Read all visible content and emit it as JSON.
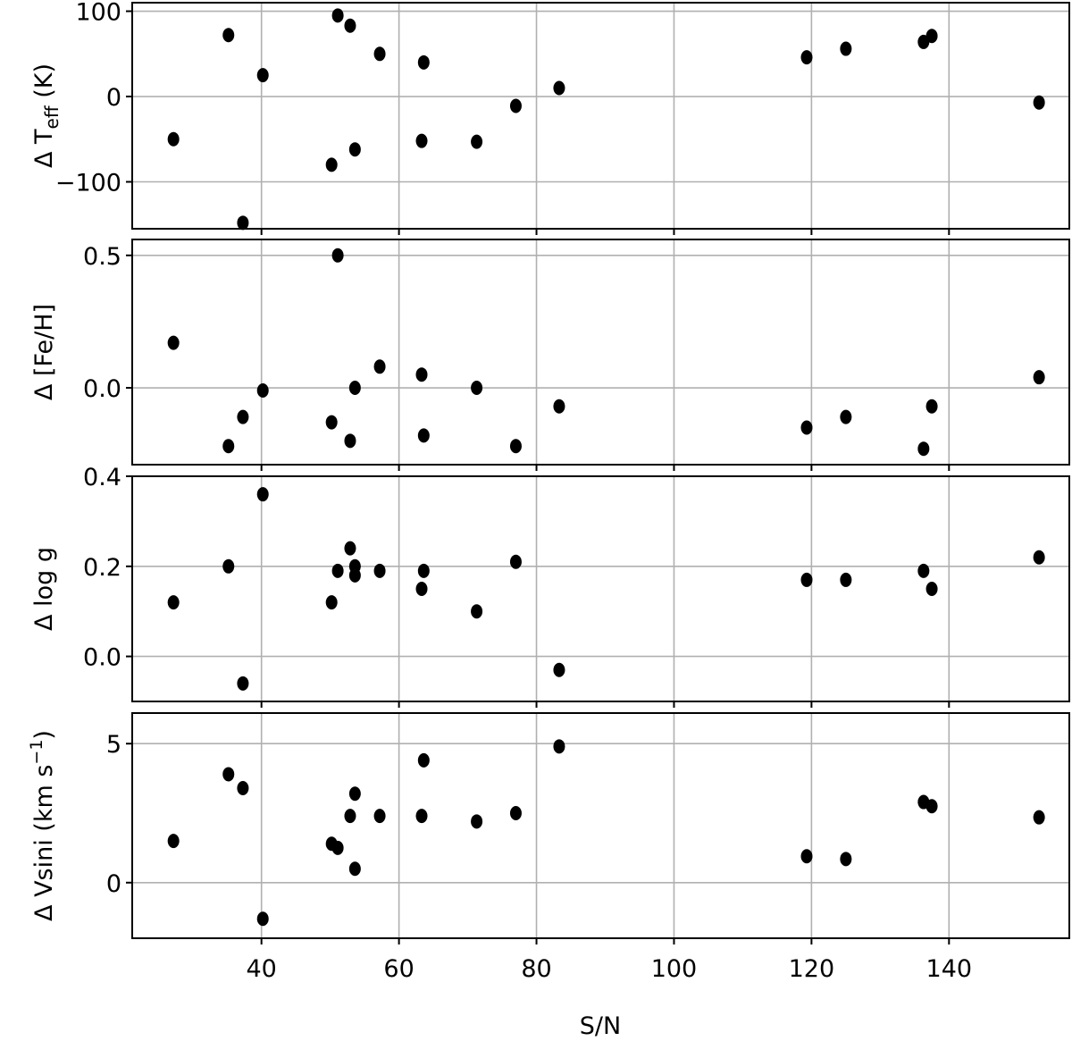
{
  "chart_data": [
    {
      "type": "scatter",
      "ylabel_main": "Δ T",
      "ylabel_sub": "eff",
      "ylabel_unit": " (K)",
      "xlabel": "",
      "ylim": [
        -155,
        110
      ],
      "yticks": [
        100,
        0,
        -100
      ],
      "ytick_labels": [
        "100",
        "0",
        "−100"
      ],
      "marker_color": "#000000",
      "points": [
        {
          "x": 27.2,
          "y": -50
        },
        {
          "x": 35.2,
          "y": 72
        },
        {
          "x": 37.3,
          "y": -148
        },
        {
          "x": 40.2,
          "y": 25
        },
        {
          "x": 50.2,
          "y": -80
        },
        {
          "x": 51.1,
          "y": 95
        },
        {
          "x": 52.9,
          "y": 83
        },
        {
          "x": 53.6,
          "y": -62
        },
        {
          "x": 57.2,
          "y": 50
        },
        {
          "x": 63.3,
          "y": -52
        },
        {
          "x": 63.6,
          "y": 40
        },
        {
          "x": 71.3,
          "y": -53
        },
        {
          "x": 77.0,
          "y": -11
        },
        {
          "x": 83.3,
          "y": 10
        },
        {
          "x": 119.3,
          "y": 46
        },
        {
          "x": 125.0,
          "y": 56
        },
        {
          "x": 136.3,
          "y": 64
        },
        {
          "x": 137.5,
          "y": 71
        },
        {
          "x": 153.1,
          "y": -7
        }
      ]
    },
    {
      "type": "scatter",
      "ylabel_main": "Δ [Fe/H]",
      "ylabel_sub": "",
      "ylabel_unit": "",
      "xlabel": "",
      "ylim": [
        -0.29,
        0.56
      ],
      "yticks": [
        0.5,
        0.0
      ],
      "ytick_labels": [
        "0.5",
        "0.0"
      ],
      "marker_color": "#000000",
      "points": [
        {
          "x": 27.2,
          "y": 0.17
        },
        {
          "x": 35.2,
          "y": -0.22
        },
        {
          "x": 37.3,
          "y": -0.11
        },
        {
          "x": 40.2,
          "y": -0.01
        },
        {
          "x": 50.2,
          "y": -0.13
        },
        {
          "x": 51.1,
          "y": 0.5
        },
        {
          "x": 52.9,
          "y": -0.2
        },
        {
          "x": 53.6,
          "y": 0.0
        },
        {
          "x": 57.2,
          "y": 0.08
        },
        {
          "x": 63.3,
          "y": 0.05
        },
        {
          "x": 63.6,
          "y": -0.18
        },
        {
          "x": 71.3,
          "y": 0.0
        },
        {
          "x": 77.0,
          "y": -0.22
        },
        {
          "x": 83.3,
          "y": -0.07
        },
        {
          "x": 119.3,
          "y": -0.15
        },
        {
          "x": 125.0,
          "y": -0.11
        },
        {
          "x": 136.3,
          "y": -0.23
        },
        {
          "x": 137.5,
          "y": -0.07
        },
        {
          "x": 153.1,
          "y": 0.04
        }
      ]
    },
    {
      "type": "scatter",
      "ylabel_main": "Δ log g",
      "ylabel_sub": "",
      "ylabel_unit": "",
      "xlabel": "",
      "ylim": [
        -0.1,
        0.4
      ],
      "yticks": [
        0.4,
        0.2,
        0.0
      ],
      "ytick_labels": [
        "0.4",
        "0.2",
        "0.0"
      ],
      "marker_color": "#000000",
      "points": [
        {
          "x": 27.2,
          "y": 0.12
        },
        {
          "x": 35.2,
          "y": 0.2
        },
        {
          "x": 37.3,
          "y": -0.06
        },
        {
          "x": 40.2,
          "y": 0.36
        },
        {
          "x": 50.2,
          "y": 0.12
        },
        {
          "x": 51.1,
          "y": 0.19
        },
        {
          "x": 52.9,
          "y": 0.24
        },
        {
          "x": 53.6,
          "y": 0.2
        },
        {
          "x": 53.6,
          "y": 0.18
        },
        {
          "x": 57.2,
          "y": 0.19
        },
        {
          "x": 63.3,
          "y": 0.15
        },
        {
          "x": 63.6,
          "y": 0.19
        },
        {
          "x": 71.3,
          "y": 0.1
        },
        {
          "x": 77.0,
          "y": 0.21
        },
        {
          "x": 83.3,
          "y": -0.03
        },
        {
          "x": 119.3,
          "y": 0.17
        },
        {
          "x": 125.0,
          "y": 0.17
        },
        {
          "x": 136.3,
          "y": 0.19
        },
        {
          "x": 137.5,
          "y": 0.15
        },
        {
          "x": 153.1,
          "y": 0.22
        }
      ]
    },
    {
      "type": "scatter",
      "ylabel_main": "Δ Vsini (km s",
      "ylabel_sub": "",
      "ylabel_sup": "−1",
      "ylabel_unit": ")",
      "xlabel": "S/N",
      "ylim": [
        -2.0,
        6.1
      ],
      "yticks": [
        5,
        0
      ],
      "ytick_labels": [
        "5",
        "0"
      ],
      "xticks": [
        40,
        60,
        80,
        100,
        120,
        140
      ],
      "xtick_labels": [
        "40",
        "60",
        "80",
        "100",
        "120",
        "140"
      ],
      "marker_color": "#000000",
      "points": [
        {
          "x": 27.2,
          "y": 1.5
        },
        {
          "x": 35.2,
          "y": 3.9
        },
        {
          "x": 37.3,
          "y": 3.4
        },
        {
          "x": 40.2,
          "y": -1.3
        },
        {
          "x": 50.2,
          "y": 1.4
        },
        {
          "x": 51.1,
          "y": 1.25
        },
        {
          "x": 52.9,
          "y": 2.4
        },
        {
          "x": 53.6,
          "y": 3.2
        },
        {
          "x": 53.6,
          "y": 0.5
        },
        {
          "x": 57.2,
          "y": 2.4
        },
        {
          "x": 63.3,
          "y": 2.4
        },
        {
          "x": 63.6,
          "y": 4.4
        },
        {
          "x": 71.3,
          "y": 2.2
        },
        {
          "x": 77.0,
          "y": 2.5
        },
        {
          "x": 83.3,
          "y": 4.9
        },
        {
          "x": 119.3,
          "y": 0.95
        },
        {
          "x": 125.0,
          "y": 0.85
        },
        {
          "x": 136.3,
          "y": 2.9
        },
        {
          "x": 137.5,
          "y": 2.75
        },
        {
          "x": 153.1,
          "y": 2.35
        }
      ]
    }
  ],
  "shared_x": {
    "xlim": [
      21.2,
      157.5
    ],
    "xticks": [
      40,
      60,
      80,
      100,
      120,
      140
    ],
    "grid": true
  }
}
